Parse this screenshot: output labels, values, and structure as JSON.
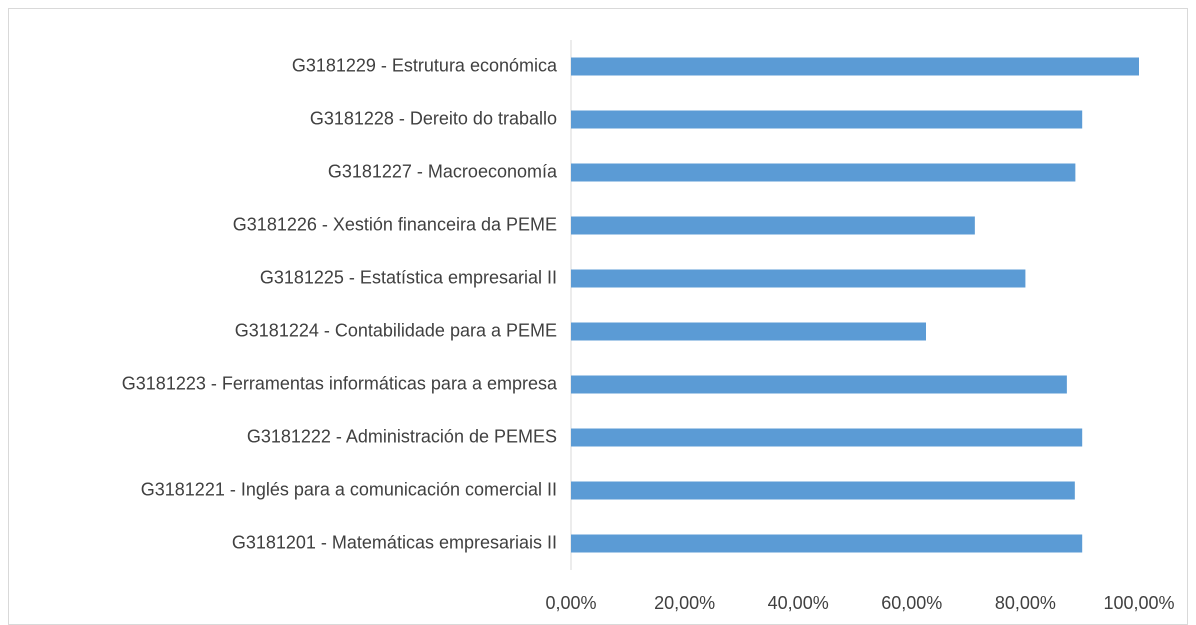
{
  "chart_data": {
    "type": "hbar",
    "categories": [
      "G3181229 - Estrutura económica",
      "G3181228 - Dereito do traballo",
      "G3181227 - Macroeconomía",
      "G3181226 - Xestión financeira da PEME",
      "G3181225 - Estatística empresarial II",
      "G3181224 - Contabilidade para a PEME",
      "G3181223 - Ferramentas informáticas para a empresa",
      "G3181222 - Administración de PEMES",
      "G3181221 - Inglés para a comunicación comercial II",
      "G3181201 - Matemáticas empresariais II"
    ],
    "values": [
      100,
      90,
      88.8,
      71.1,
      80,
      62.5,
      87.3,
      90,
      88.7,
      90
    ],
    "color": "#5b9bd5",
    "xlim": [
      0,
      100
    ],
    "xticks": [
      {
        "value": 0,
        "label": "0,00%"
      },
      {
        "value": 20,
        "label": "20,00%"
      },
      {
        "value": 40,
        "label": "40,00%"
      },
      {
        "value": 60,
        "label": "60,00%"
      },
      {
        "value": 80,
        "label": "80,00%"
      },
      {
        "value": 100,
        "label": "100,00%"
      }
    ],
    "grid": false
  }
}
